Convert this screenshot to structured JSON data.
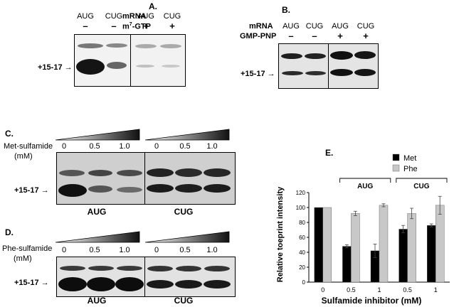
{
  "panelA": {
    "label": "A.",
    "mrna_label": "mRNA",
    "cap_label_pre": "m",
    "cap_label_sup": "7",
    "cap_label_post": "-GTP",
    "lanes": [
      "AUG",
      "CUG",
      "AUG",
      "CUG"
    ],
    "signs": [
      "–",
      "–",
      "+",
      "+"
    ],
    "marker": "+15-17"
  },
  "panelB": {
    "label": "B.",
    "mrna_label": "mRNA",
    "gmp_label": "GMP-PNP",
    "lanes": [
      "AUG",
      "CUG",
      "AUG",
      "CUG"
    ],
    "signs": [
      "–",
      "–",
      "+",
      "+"
    ],
    "marker": "+15-17"
  },
  "panelC": {
    "label": "C.",
    "reagent_line1": "Met-sulfamide",
    "reagent_line2": "(mM)",
    "conc": [
      "0",
      "0.5",
      "1.0",
      "0",
      "0.5",
      "1.0"
    ],
    "marker": "+15-17",
    "groups": [
      "AUG",
      "CUG"
    ]
  },
  "panelD": {
    "label": "D.",
    "reagent_line1": "Phe-sulfamide",
    "reagent_line2": "(mM)",
    "conc": [
      "0",
      "0.5",
      "1.0",
      "0",
      "0.5",
      "1.0"
    ],
    "marker": "+15-17",
    "groups": [
      "AUG",
      "CUG"
    ]
  },
  "panelE": {
    "label": "E.",
    "group_labels": [
      "AUG",
      "CUG"
    ]
  },
  "chart_data": {
    "type": "bar",
    "categories": [
      "0",
      "0.5",
      "1",
      "0.5",
      "1"
    ],
    "series": [
      {
        "name": "Met",
        "color": "#000000",
        "values": [
          100,
          48,
          42,
          71,
          76
        ],
        "errors": [
          0,
          2,
          9,
          5,
          2
        ]
      },
      {
        "name": "Phe",
        "color": "#c8c8c8",
        "values": [
          100,
          92,
          103,
          92,
          103
        ],
        "errors": [
          0,
          3,
          2,
          7,
          12
        ]
      }
    ],
    "ylim": [
      0,
      120
    ],
    "yticks": [
      0,
      20,
      40,
      60,
      80,
      100,
      120
    ],
    "xlabel": "Sulfamide inhibitor (mM)",
    "ylabel": "Relative toeprint intensity",
    "legend_position": "top-right"
  }
}
